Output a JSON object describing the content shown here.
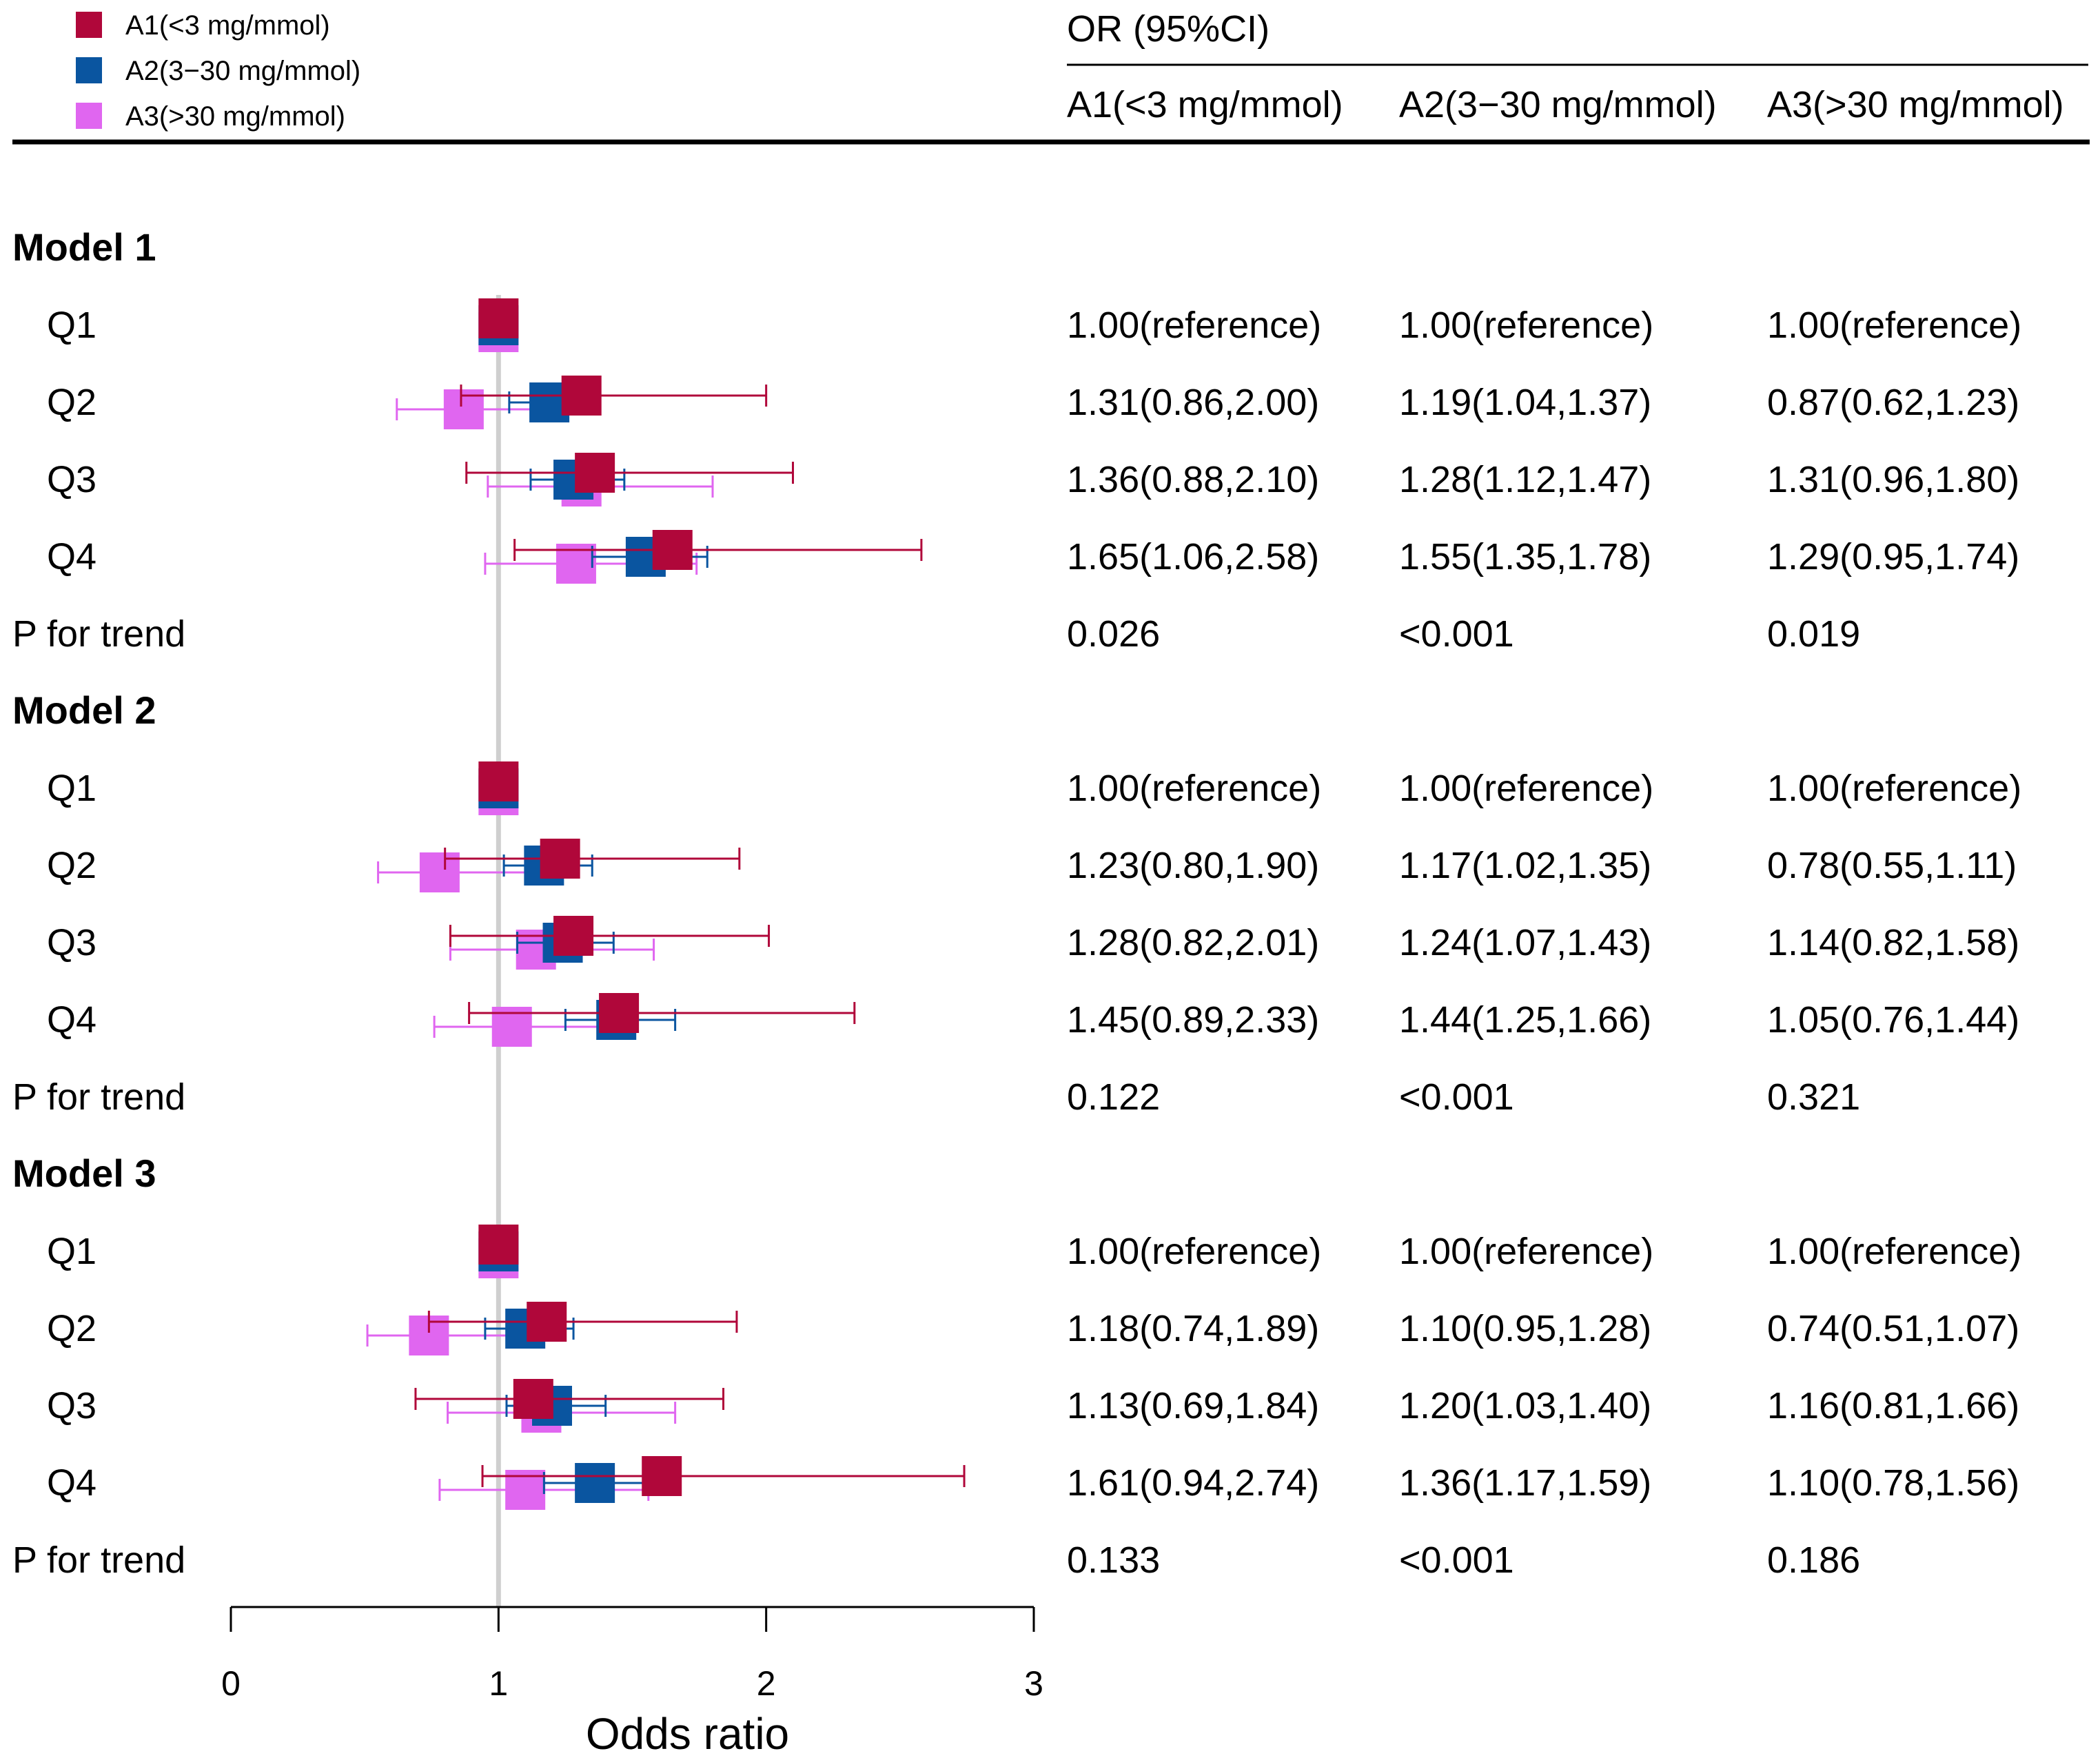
{
  "chart_data": {
    "type": "forest",
    "xlabel": "Odds ratio",
    "xlim": [
      0,
      3
    ],
    "xticks": [
      "0",
      "1",
      "2",
      "3"
    ],
    "reference_line": 1,
    "header": {
      "title": "OR (95%CI)",
      "columns": [
        "A1(<3 mg/mmol)",
        "A2(3−30 mg/mmol)",
        "A3(>30 mg/mmol)"
      ]
    },
    "series": [
      {
        "name": "A1(<3 mg/mmol)",
        "color": "#B0073A"
      },
      {
        "name": "A2(3−30 mg/mmol)",
        "color": "#0A55A0"
      },
      {
        "name": "A3(>30 mg/mmol)",
        "color": "#E066F0"
      }
    ],
    "models": [
      {
        "name": "Model 1",
        "rows": [
          {
            "label": "Q1",
            "points": [
              [
                1,
                1,
                1
              ],
              [
                1,
                1,
                1
              ],
              [
                1,
                1,
                1
              ]
            ],
            "text": [
              "1.00(reference)",
              "1.00(reference)",
              "1.00(reference)"
            ]
          },
          {
            "label": "Q2",
            "points": [
              [
                1.31,
                0.86,
                2.0
              ],
              [
                1.19,
                1.04,
                1.37
              ],
              [
                0.87,
                0.62,
                1.23
              ]
            ],
            "text": [
              "1.31(0.86,2.00)",
              "1.19(1.04,1.37)",
              "0.87(0.62,1.23)"
            ]
          },
          {
            "label": "Q3",
            "points": [
              [
                1.36,
                0.88,
                2.1
              ],
              [
                1.28,
                1.12,
                1.47
              ],
              [
                1.31,
                0.96,
                1.8
              ]
            ],
            "text": [
              "1.36(0.88,2.10)",
              "1.28(1.12,1.47)",
              "1.31(0.96,1.80)"
            ]
          },
          {
            "label": "Q4",
            "points": [
              [
                1.65,
                1.06,
                2.58
              ],
              [
                1.55,
                1.35,
                1.78
              ],
              [
                1.29,
                0.95,
                1.74
              ]
            ],
            "text": [
              "1.65(1.06,2.58)",
              "1.55(1.35,1.78)",
              "1.29(0.95,1.74)"
            ]
          }
        ],
        "trend": {
          "label": "P for trend",
          "values": [
            "0.026",
            "<0.001",
            "0.019"
          ]
        }
      },
      {
        "name": "Model 2",
        "rows": [
          {
            "label": "Q1",
            "points": [
              [
                1,
                1,
                1
              ],
              [
                1,
                1,
                1
              ],
              [
                1,
                1,
                1
              ]
            ],
            "text": [
              "1.00(reference)",
              "1.00(reference)",
              "1.00(reference)"
            ]
          },
          {
            "label": "Q2",
            "points": [
              [
                1.23,
                0.8,
                1.9
              ],
              [
                1.17,
                1.02,
                1.35
              ],
              [
                0.78,
                0.55,
                1.11
              ]
            ],
            "text": [
              "1.23(0.80,1.90)",
              "1.17(1.02,1.35)",
              "0.78(0.55,1.11)"
            ]
          },
          {
            "label": "Q3",
            "points": [
              [
                1.28,
                0.82,
                2.01
              ],
              [
                1.24,
                1.07,
                1.43
              ],
              [
                1.14,
                0.82,
                1.58
              ]
            ],
            "text": [
              "1.28(0.82,2.01)",
              "1.24(1.07,1.43)",
              "1.14(0.82,1.58)"
            ]
          },
          {
            "label": "Q4",
            "points": [
              [
                1.45,
                0.89,
                2.33
              ],
              [
                1.44,
                1.25,
                1.66
              ],
              [
                1.05,
                0.76,
                1.44
              ]
            ],
            "text": [
              "1.45(0.89,2.33)",
              "1.44(1.25,1.66)",
              "1.05(0.76,1.44)"
            ]
          }
        ],
        "trend": {
          "label": "P for trend",
          "values": [
            "0.122",
            "<0.001",
            "0.321"
          ]
        }
      },
      {
        "name": "Model 3",
        "rows": [
          {
            "label": "Q1",
            "points": [
              [
                1,
                1,
                1
              ],
              [
                1,
                1,
                1
              ],
              [
                1,
                1,
                1
              ]
            ],
            "text": [
              "1.00(reference)",
              "1.00(reference)",
              "1.00(reference)"
            ]
          },
          {
            "label": "Q2",
            "points": [
              [
                1.18,
                0.74,
                1.89
              ],
              [
                1.1,
                0.95,
                1.28
              ],
              [
                0.74,
                0.51,
                1.07
              ]
            ],
            "text": [
              "1.18(0.74,1.89)",
              "1.10(0.95,1.28)",
              "0.74(0.51,1.07)"
            ]
          },
          {
            "label": "Q3",
            "points": [
              [
                1.13,
                0.69,
                1.84
              ],
              [
                1.2,
                1.03,
                1.4
              ],
              [
                1.16,
                0.81,
                1.66
              ]
            ],
            "text": [
              "1.13(0.69,1.84)",
              "1.20(1.03,1.40)",
              "1.16(0.81,1.66)"
            ]
          },
          {
            "label": "Q4",
            "points": [
              [
                1.61,
                0.94,
                2.74
              ],
              [
                1.36,
                1.17,
                1.59
              ],
              [
                1.1,
                0.78,
                1.56
              ]
            ],
            "text": [
              "1.61(0.94,2.74)",
              "1.36(1.17,1.59)",
              "1.10(0.78,1.56)"
            ]
          }
        ],
        "trend": {
          "label": "P for trend",
          "values": [
            "0.133",
            "<0.001",
            "0.186"
          ]
        }
      }
    ]
  }
}
